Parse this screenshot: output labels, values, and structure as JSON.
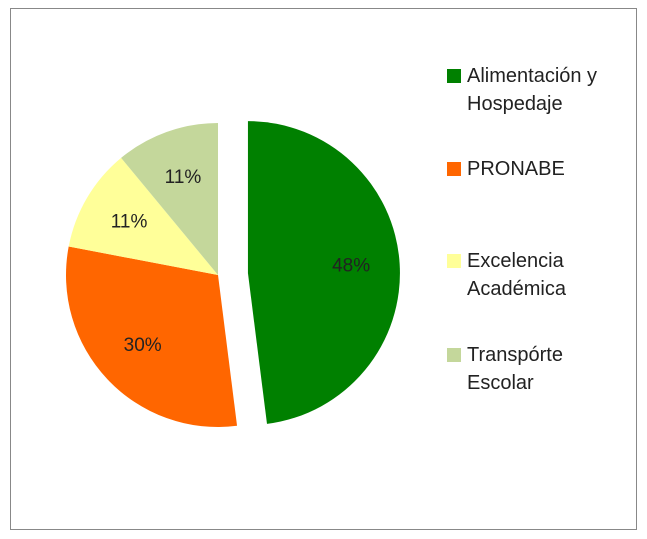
{
  "chart_data": {
    "type": "pie",
    "categories": [
      "Alimentación y Hospedaje",
      "PRONABE",
      "Excelencia Académica",
      "Transpórte Escolar"
    ],
    "values": [
      48,
      30,
      11,
      11
    ],
    "value_labels": [
      "48%",
      "30%",
      "11%",
      "11%"
    ],
    "colors": [
      "#008000",
      "#ff6600",
      "#ffff99",
      "#c4d79b"
    ],
    "exploded": [
      0
    ],
    "legend": "right"
  }
}
